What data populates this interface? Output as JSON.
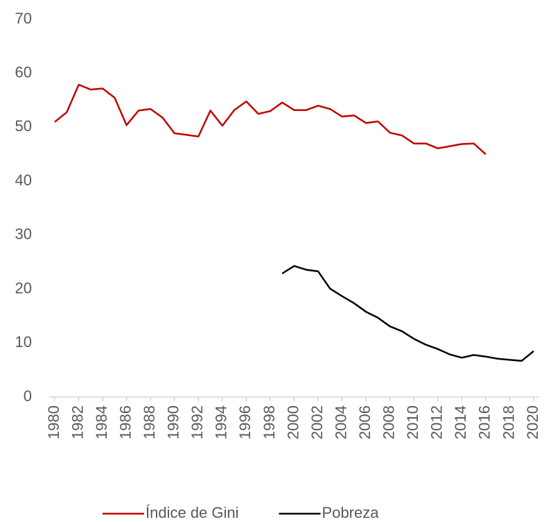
{
  "chart_data": {
    "type": "line",
    "x": [
      1980,
      1981,
      1982,
      1983,
      1984,
      1985,
      1986,
      1987,
      1988,
      1989,
      1990,
      1991,
      1992,
      1993,
      1994,
      1995,
      1996,
      1997,
      1998,
      1999,
      2000,
      2001,
      2002,
      2003,
      2004,
      2005,
      2006,
      2007,
      2008,
      2009,
      2010,
      2011,
      2012,
      2013,
      2014,
      2015,
      2016,
      2017,
      2018,
      2019,
      2020
    ],
    "series": [
      {
        "name": "Índice de Gini",
        "color": "#c00000",
        "values": [
          51.0,
          52.8,
          57.9,
          57.0,
          57.2,
          55.5,
          50.4,
          53.1,
          53.4,
          51.8,
          48.9,
          48.6,
          48.3,
          53.1,
          50.3,
          53.2,
          54.8,
          52.5,
          53.0,
          54.6,
          53.2,
          53.2,
          54.0,
          53.4,
          52.0,
          52.2,
          50.8,
          51.1,
          49.0,
          48.5,
          47.0,
          47.0,
          46.1,
          46.5,
          46.9,
          47.0,
          45.0,
          null,
          null,
          null,
          null
        ]
      },
      {
        "name": "Pobreza",
        "color": "#000000",
        "values": [
          null,
          null,
          null,
          null,
          null,
          null,
          null,
          null,
          null,
          null,
          null,
          null,
          null,
          null,
          null,
          null,
          null,
          null,
          null,
          22.9,
          24.3,
          23.6,
          23.3,
          20.1,
          18.7,
          17.4,
          15.8,
          14.7,
          13.1,
          12.2,
          10.8,
          9.7,
          8.9,
          7.9,
          7.3,
          7.8,
          7.5,
          7.1,
          6.9,
          6.7,
          8.5
        ]
      }
    ],
    "xlim": [
      1980,
      2020
    ],
    "xticks": [
      1980,
      1982,
      1984,
      1986,
      1988,
      1990,
      1992,
      1994,
      1996,
      1998,
      2000,
      2002,
      2004,
      2006,
      2008,
      2010,
      2012,
      2014,
      2016,
      2018,
      2020
    ],
    "ylim": [
      0,
      70
    ],
    "yticks": [
      0,
      10,
      20,
      30,
      40,
      50,
      60,
      70
    ],
    "grid": false,
    "legend": "bottom"
  }
}
